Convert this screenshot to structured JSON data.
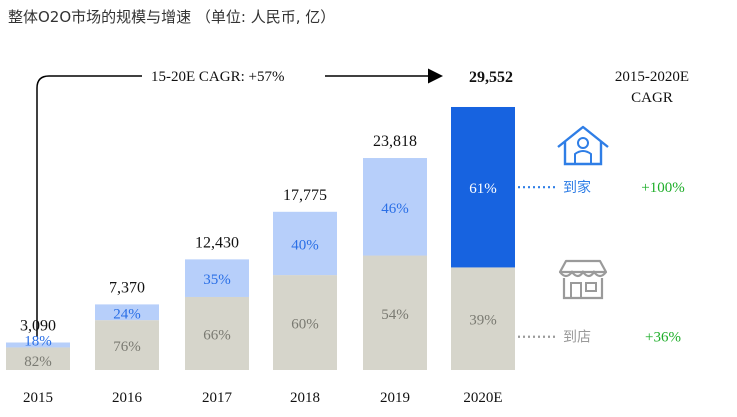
{
  "title": "整体O2O市场的规模与增速 （单位: 人民币, 亿）",
  "cagr_annotation": "15-20E CAGR: +57%",
  "legend_header": [
    "2015-2020E",
    "CAGR"
  ],
  "colors": {
    "bottom_gray": "#d6d5cb",
    "light_blue": "#b7cffa",
    "dark_blue": "#1763e0",
    "pct_blue_text": "#2a6fe6",
    "pct_gray_text": "#7a7a72",
    "growth_green": "#1fae2a",
    "icon_blue": "#2f7ee6",
    "icon_gray": "#9a9a9a"
  },
  "chart_data": {
    "type": "bar",
    "stacked": true,
    "categories": [
      "2015",
      "2016",
      "2017",
      "2018",
      "2019",
      "2020E"
    ],
    "totals": [
      3090,
      7370,
      12430,
      17775,
      23818,
      29552
    ],
    "total_labels": [
      "3,090",
      "7,370",
      "12,430",
      "17,775",
      "23,818",
      "29,552"
    ],
    "series": [
      {
        "name": "到店",
        "share_labels": [
          "82%",
          "76%",
          "66%",
          "60%",
          "54%",
          "39%"
        ],
        "shares": [
          0.82,
          0.76,
          0.66,
          0.6,
          0.54,
          0.39
        ],
        "cagr": "+36%"
      },
      {
        "name": "到家",
        "share_labels": [
          "18%",
          "24%",
          "35%",
          "40%",
          "46%",
          "61%"
        ],
        "shares": [
          0.18,
          0.24,
          0.35,
          0.4,
          0.46,
          0.61
        ],
        "cagr": "+100%"
      }
    ],
    "ylim": [
      0,
      30000
    ]
  }
}
